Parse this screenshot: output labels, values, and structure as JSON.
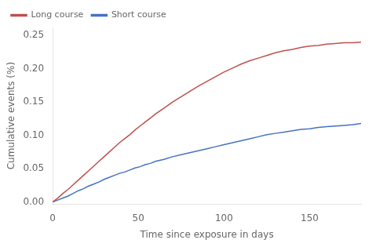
{
  "chart_data": {
    "type": "line",
    "xlabel": "Time since exposure in days",
    "ylabel": "Cumulative events (%)",
    "xlim": [
      0,
      180
    ],
    "ylim": [
      -0.003,
      0.262
    ],
    "xticks": [
      0,
      50,
      100,
      150
    ],
    "yticks": [
      {
        "value": 0.0,
        "label": "0.00"
      },
      {
        "value": 0.05,
        "label": "0.05"
      },
      {
        "value": 0.1,
        "label": "0.10"
      },
      {
        "value": 0.15,
        "label": "0.15"
      },
      {
        "value": 0.2,
        "label": "0.20"
      },
      {
        "value": 0.25,
        "label": "0.25"
      }
    ],
    "grid": false,
    "legend": "upper left",
    "x": [
      0,
      3,
      6,
      9,
      12,
      15,
      18,
      21,
      24,
      27,
      30,
      33,
      36,
      39,
      42,
      45,
      48,
      51,
      54,
      57,
      60,
      65,
      70,
      75,
      80,
      85,
      90,
      95,
      100,
      105,
      110,
      115,
      120,
      125,
      130,
      135,
      140,
      145,
      150,
      155,
      160,
      165,
      170,
      175,
      180
    ],
    "series": [
      {
        "name": "Long course",
        "color": "#c0504d",
        "values": [
          0.0,
          0.006,
          0.013,
          0.019,
          0.026,
          0.033,
          0.04,
          0.047,
          0.054,
          0.061,
          0.068,
          0.075,
          0.082,
          0.089,
          0.095,
          0.101,
          0.108,
          0.114,
          0.12,
          0.126,
          0.132,
          0.141,
          0.15,
          0.158,
          0.166,
          0.174,
          0.181,
          0.188,
          0.195,
          0.201,
          0.207,
          0.212,
          0.216,
          0.22,
          0.224,
          0.227,
          0.229,
          0.232,
          0.234,
          0.235,
          0.237,
          0.238,
          0.239,
          0.239,
          0.24
        ]
      },
      {
        "name": "Short course",
        "color": "#4472c4",
        "values": [
          0.0,
          0.003,
          0.006,
          0.009,
          0.013,
          0.017,
          0.02,
          0.024,
          0.027,
          0.03,
          0.034,
          0.037,
          0.04,
          0.043,
          0.045,
          0.048,
          0.051,
          0.053,
          0.056,
          0.058,
          0.061,
          0.064,
          0.068,
          0.071,
          0.074,
          0.077,
          0.08,
          0.083,
          0.086,
          0.089,
          0.092,
          0.095,
          0.098,
          0.101,
          0.103,
          0.105,
          0.107,
          0.109,
          0.11,
          0.112,
          0.113,
          0.114,
          0.115,
          0.116,
          0.118
        ]
      }
    ]
  }
}
